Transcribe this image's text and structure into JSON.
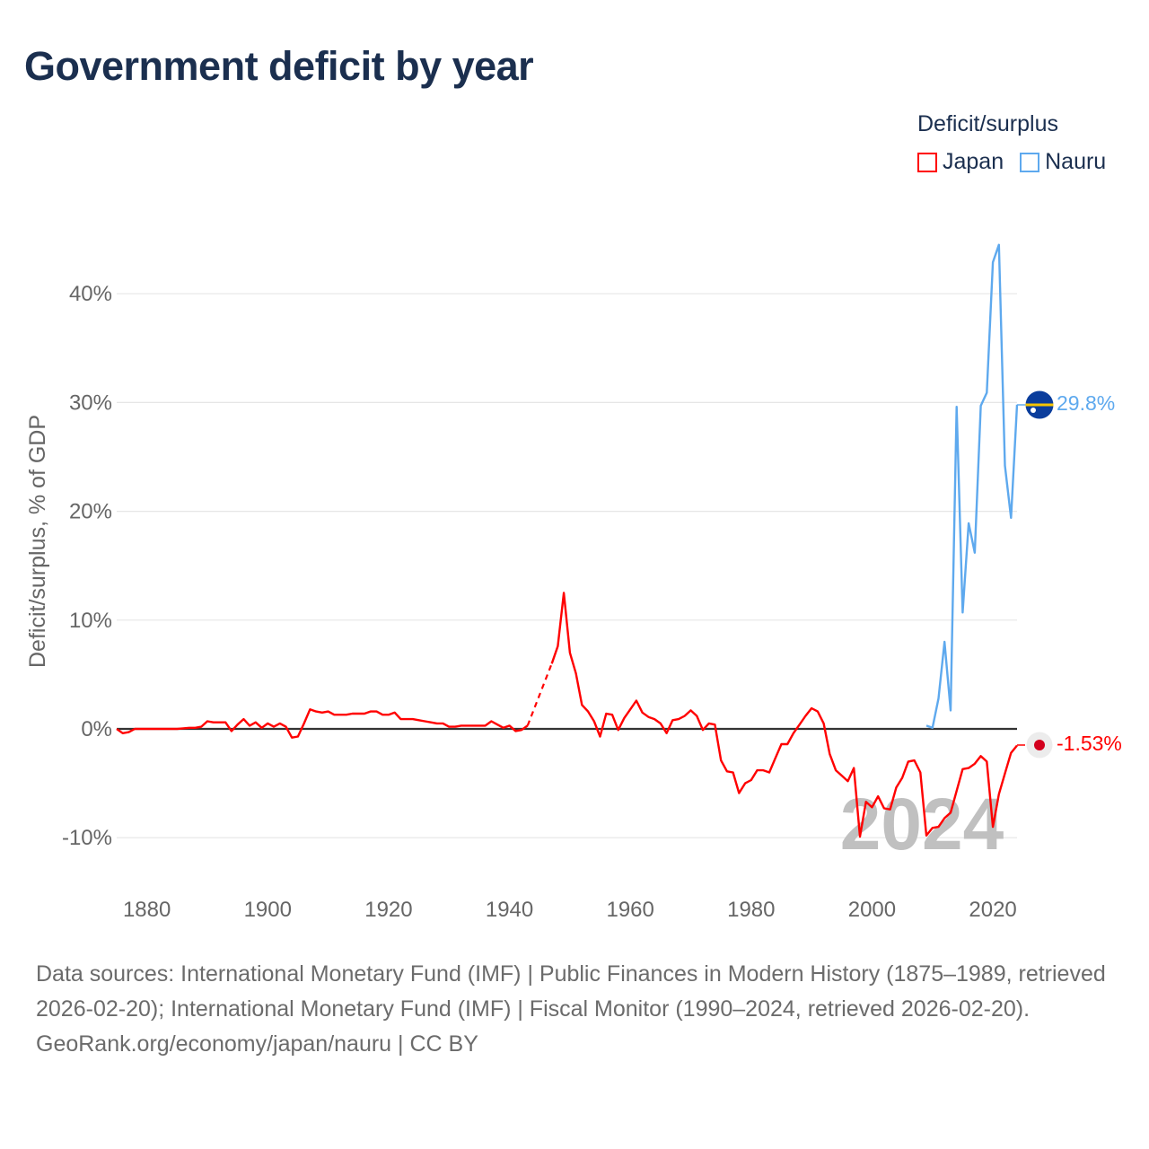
{
  "title": "Government deficit by year",
  "legend": {
    "title": "Deficit/surplus",
    "items": [
      {
        "label": "Japan",
        "color": "#ff0000"
      },
      {
        "label": "Nauru",
        "color": "#5ea9ee"
      }
    ]
  },
  "footer": {
    "sources": "Data sources: International Monetary Fund (IMF) | Public Finances in Modern History (1875–1989, retrieved 2026-02-20); International Monetary Fund (IMF) | Fiscal Monitor (1990–2024, retrieved 2026-02-20).",
    "credit": "GeoRank.org/economy/japan/nauru | CC BY"
  },
  "chart_data": {
    "type": "line",
    "title": "Government deficit by year",
    "xlabel": "",
    "ylabel": "Deficit/surplus, % of GDP",
    "xlim": [
      1875,
      2024
    ],
    "ylim": [
      -15,
      45
    ],
    "x_ticks": [
      1880,
      1900,
      1920,
      1940,
      1960,
      1980,
      2000,
      2020
    ],
    "x_tick_labels": [
      "1880",
      "1900",
      "1920",
      "1940",
      "1960",
      "1980",
      "2000",
      "2020"
    ],
    "y_ticks": [
      -10,
      0,
      10,
      20,
      30,
      40
    ],
    "y_tick_labels": [
      "-10%",
      "0%",
      "10%",
      "20%",
      "30%",
      "40%"
    ],
    "grid": true,
    "legend_position": "top-right",
    "year_watermark": "2024",
    "series": [
      {
        "name": "Japan",
        "color": "#ff0000",
        "end_label": "-1.53%",
        "x": [
          1875,
          1876,
          1877,
          1878,
          1879,
          1880,
          1881,
          1882,
          1883,
          1884,
          1885,
          1886,
          1887,
          1888,
          1889,
          1890,
          1891,
          1892,
          1893,
          1894,
          1895,
          1896,
          1897,
          1898,
          1899,
          1900,
          1901,
          1902,
          1903,
          1904,
          1905,
          1906,
          1907,
          1908,
          1909,
          1910,
          1911,
          1912,
          1913,
          1914,
          1915,
          1916,
          1917,
          1918,
          1919,
          1920,
          1921,
          1922,
          1923,
          1924,
          1925,
          1926,
          1927,
          1928,
          1929,
          1930,
          1931,
          1932,
          1933,
          1934,
          1935,
          1936,
          1937,
          1938,
          1939,
          1940,
          1941,
          1942,
          1943,
          1944,
          1945,
          1946,
          1947,
          1948,
          1949,
          1950,
          1951,
          1952,
          1953,
          1954,
          1955,
          1956,
          1957,
          1958,
          1959,
          1960,
          1961,
          1962,
          1963,
          1964,
          1965,
          1966,
          1967,
          1968,
          1969,
          1970,
          1971,
          1972,
          1973,
          1974,
          1975,
          1976,
          1977,
          1978,
          1979,
          1980,
          1981,
          1982,
          1983,
          1984,
          1985,
          1986,
          1987,
          1988,
          1989,
          1990,
          1991,
          1992,
          1993,
          1994,
          1995,
          1996,
          1997,
          1998,
          1999,
          2000,
          2001,
          2002,
          2003,
          2004,
          2005,
          2006,
          2007,
          2008,
          2009,
          2010,
          2011,
          2012,
          2013,
          2014,
          2015,
          2016,
          2017,
          2018,
          2019,
          2020,
          2021,
          2022,
          2023,
          2024
        ],
        "y": [
          0,
          -0.4,
          -0.3,
          0,
          0,
          0,
          0,
          0,
          0,
          0,
          0,
          0.05,
          0.1,
          0.1,
          0.2,
          0.7,
          0.6,
          0.6,
          0.6,
          -0.2,
          0.4,
          0.9,
          0.3,
          0.6,
          0.1,
          0.5,
          0.2,
          0.5,
          0.2,
          -0.8,
          -0.7,
          0.5,
          1.8,
          1.6,
          1.5,
          1.6,
          1.3,
          1.3,
          1.3,
          1.4,
          1.4,
          1.4,
          1.6,
          1.6,
          1.3,
          1.3,
          1.5,
          0.9,
          0.9,
          0.9,
          0.8,
          0.7,
          0.6,
          0.5,
          0.5,
          0.2,
          0.2,
          0.3,
          0.3,
          0.3,
          0.3,
          0.3,
          0.7,
          0.4,
          0.1,
          0.3,
          -0.2,
          -0.1,
          0.3,
          null,
          null,
          null,
          6.0,
          7.6,
          12.5,
          7.0,
          5.1,
          2.2,
          1.6,
          0.7,
          -0.7,
          1.4,
          1.3,
          -0.1,
          1.0,
          1.8,
          2.6,
          1.5,
          1.1,
          0.9,
          0.5,
          -0.4,
          0.8,
          0.9,
          1.2,
          1.7,
          1.2,
          -0.1,
          0.5,
          0.4,
          -2.9,
          -3.9,
          -4.0,
          -5.9,
          -5.0,
          -4.7,
          -3.8,
          -3.8,
          -4.0,
          -2.7,
          -1.4,
          -1.4,
          -0.4,
          0.4,
          1.2,
          1.9,
          1.6,
          0.5,
          -2.3,
          -3.8,
          -4.3,
          -4.8,
          -3.6,
          -9.9,
          -6.7,
          -7.2,
          -6.2,
          -7.3,
          -7.4,
          -5.4,
          -4.5,
          -3.0,
          -2.9,
          -4.0,
          -9.8,
          -9.1,
          -9.0,
          -8.2,
          -7.7,
          -5.7,
          -3.7,
          -3.6,
          -3.2,
          -2.5,
          -3.0,
          -9.0,
          -6.0,
          -4.1,
          -2.2,
          -1.53
        ]
      },
      {
        "name": "Nauru",
        "color": "#5ea9ee",
        "end_label": "29.8%",
        "x": [
          2009,
          2010,
          2011,
          2012,
          2013,
          2014,
          2015,
          2016,
          2017,
          2018,
          2019,
          2020,
          2021,
          2022,
          2023,
          2024
        ],
        "y": [
          0.3,
          0.1,
          2.8,
          8.0,
          1.7,
          29.6,
          10.7,
          18.9,
          16.2,
          29.7,
          30.9,
          42.9,
          44.5,
          24.2,
          19.4,
          29.8
        ]
      }
    ]
  }
}
